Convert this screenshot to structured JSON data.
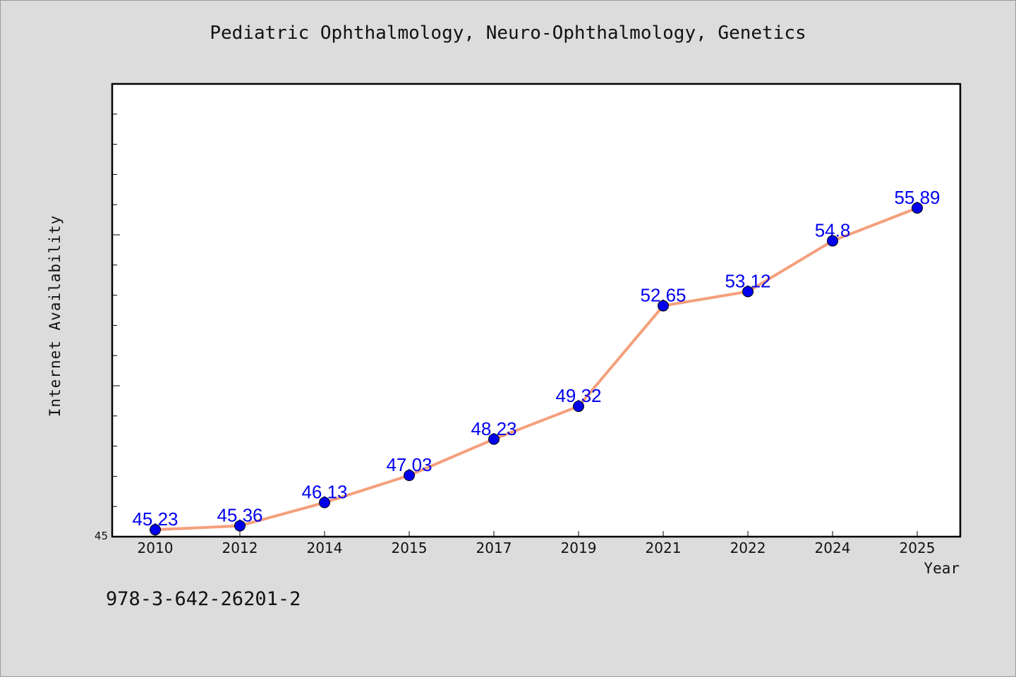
{
  "footer": {
    "code": "978-3-642-26201-2"
  },
  "chart_data": {
    "type": "line",
    "title": "Pediatric Ophthalmology, Neuro-Ophthalmology, Genetics",
    "xlabel": "Year",
    "ylabel": "Internet Availability",
    "categories": [
      "2010",
      "2012",
      "2014",
      "2015",
      "2017",
      "2019",
      "2021",
      "2022",
      "2024",
      "2025"
    ],
    "series": [
      {
        "values": [
          45.23,
          45.36,
          46.13,
          47.03,
          48.23,
          49.32,
          52.65,
          53.12,
          54.8,
          55.89
        ]
      }
    ],
    "data_labels": [
      "45.23",
      "45.36",
      "46.13",
      "47.03",
      "48.23",
      "49.32",
      "52.65",
      "53.12",
      "54.8",
      "55.89"
    ],
    "ylim": [
      45,
      60
    ],
    "y_tick_labels": [
      "45"
    ],
    "grid": false,
    "legend": "none",
    "colors": {
      "line": "#f4a07c",
      "marker": "#0000ee",
      "label": "#0000ee",
      "background": "#dcdcdc",
      "plot_background": "#ffffff"
    }
  }
}
